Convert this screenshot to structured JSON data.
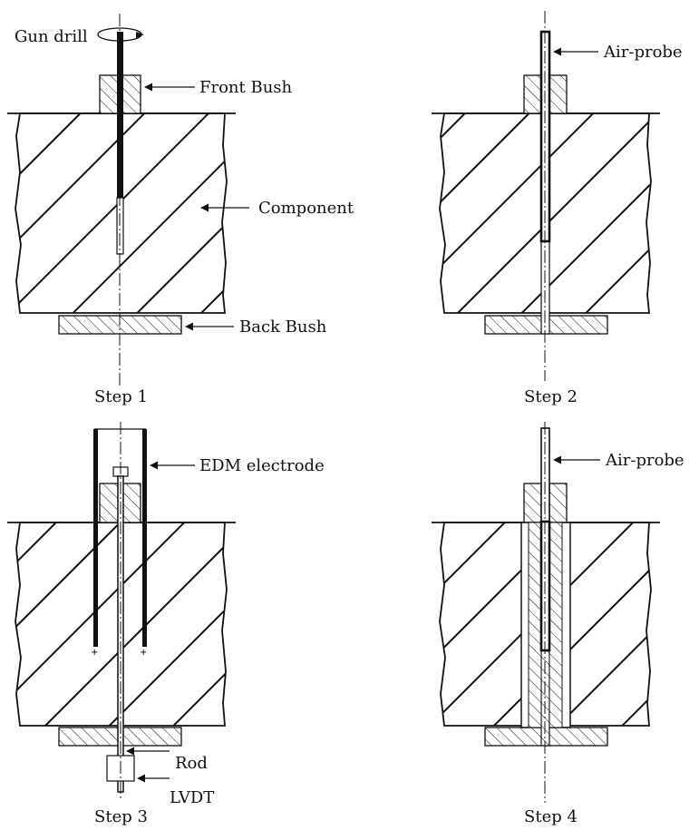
{
  "labels": {
    "gun_drill": "Gun drill",
    "front_bush": "Front Bush",
    "component": "Component",
    "back_bush": "Back Bush",
    "air_probe_2": "Air-probe",
    "edm_electrode": "EDM electrode",
    "rod": "Rod",
    "lvdt": "LVDT",
    "air_probe_4": "Air-probe"
  },
  "steps": {
    "s1": "Step 1",
    "s2": "Step 2",
    "s3": "Step 3",
    "s4": "Step 4"
  },
  "colors": {
    "ink": "#111111",
    "background": "#ffffff"
  }
}
